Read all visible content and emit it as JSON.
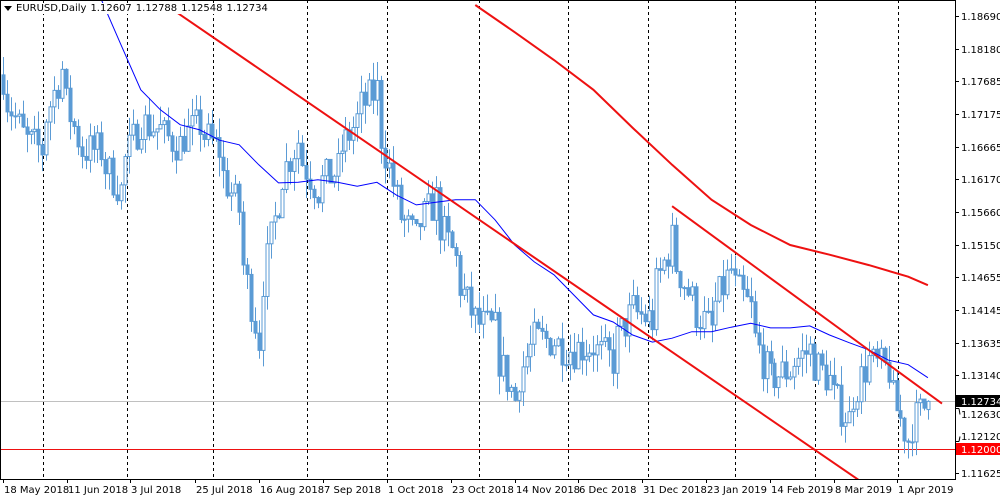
{
  "header": {
    "symbol": "EURUSD,Daily",
    "open": "1.12607",
    "high": "1.12788",
    "low": "1.12548",
    "close": "1.12734"
  },
  "colors": {
    "candle": "#5b9bd5",
    "ma_fast": "#0000ff",
    "ma_slow": "#ee1111",
    "trendline": "#ee1111",
    "level_line": "#ee1111",
    "current_price_line": "#c0c0c0",
    "current_price_label_bg": "#000000",
    "level_label_bg": "#ff0000"
  },
  "chart_data": {
    "type": "candlestick",
    "title": "EURUSD,Daily",
    "grid": "vertical dashed",
    "ylim": [
      1.11625,
      1.189
    ],
    "y_ticks": [
      "1.18690",
      "1.18180",
      "1.17685",
      "1.17175",
      "1.16665",
      "1.16170",
      "1.15660",
      "1.15150",
      "1.14655",
      "1.14145",
      "1.13635",
      "1.13140",
      "1.12630",
      "1.12120",
      "1.11625"
    ],
    "x_ticks": [
      {
        "label": "18 May 2018",
        "date": "2018-05-18"
      },
      {
        "label": "11 Jun 2018",
        "date": "2018-06-11"
      },
      {
        "label": "3 Jul 2018",
        "date": "2018-07-03"
      },
      {
        "label": "25 Jul 2018",
        "date": "2018-07-25"
      },
      {
        "label": "16 Aug 2018",
        "date": "2018-08-16"
      },
      {
        "label": "7 Sep 2018",
        "date": "2018-09-07"
      },
      {
        "label": "1 Oct 2018",
        "date": "2018-10-01"
      },
      {
        "label": "23 Oct 2018",
        "date": "2018-10-23"
      },
      {
        "label": "14 Nov 2018",
        "date": "2018-11-14"
      },
      {
        "label": "6 Dec 2018",
        "date": "2018-12-06"
      },
      {
        "label": "31 Dec 2018",
        "date": "2018-12-31"
      },
      {
        "label": "23 Jan 2019",
        "date": "2019-01-23"
      },
      {
        "label": "14 Feb 2019",
        "date": "2019-02-14"
      },
      {
        "label": "8 Mar 2019",
        "date": "2019-03-08"
      },
      {
        "label": "1 Apr 2019",
        "date": "2019-04-01"
      }
    ],
    "close_path": [
      [
        "2018-05-18",
        1.1778
      ],
      [
        "2018-05-25",
        1.1685
      ],
      [
        "2018-06-01",
        1.1662
      ],
      [
        "2018-06-08",
        1.1786
      ],
      [
        "2018-06-15",
        1.1662
      ],
      [
        "2018-06-22",
        1.1662
      ],
      [
        "2018-06-29",
        1.16
      ],
      [
        "2018-07-06",
        1.1708
      ],
      [
        "2018-07-13",
        1.1693
      ],
      [
        "2018-07-20",
        1.167
      ],
      [
        "2018-07-27",
        1.1701
      ],
      [
        "2018-08-03",
        1.1662
      ],
      [
        "2018-08-10",
        1.1569
      ],
      [
        "2018-08-17",
        1.1368
      ],
      [
        "2018-08-24",
        1.1585
      ],
      [
        "2018-08-31",
        1.1677
      ],
      [
        "2018-09-07",
        1.16
      ],
      [
        "2018-09-14",
        1.1631
      ],
      [
        "2018-09-21",
        1.1708
      ],
      [
        "2018-09-28",
        1.1755
      ],
      [
        "2018-10-05",
        1.1585
      ],
      [
        "2018-10-12",
        1.1523
      ],
      [
        "2018-10-19",
        1.1585
      ],
      [
        "2018-10-26",
        1.1492
      ],
      [
        "2018-11-02",
        1.1399
      ],
      [
        "2018-11-09",
        1.1384
      ],
      [
        "2018-11-16",
        1.1276
      ],
      [
        "2018-11-23",
        1.1368
      ],
      [
        "2018-11-30",
        1.1368
      ],
      [
        "2018-12-07",
        1.1353
      ],
      [
        "2018-12-14",
        1.136
      ],
      [
        "2018-12-21",
        1.1337
      ],
      [
        "2018-12-28",
        1.1415
      ],
      [
        "2019-01-04",
        1.1399
      ],
      [
        "2019-01-11",
        1.1523
      ],
      [
        "2019-01-18",
        1.143
      ],
      [
        "2019-01-25",
        1.1384
      ],
      [
        "2019-02-01",
        1.1476
      ],
      [
        "2019-02-08",
        1.1415
      ],
      [
        "2019-02-15",
        1.1306
      ],
      [
        "2019-02-22",
        1.1322
      ],
      [
        "2019-03-01",
        1.1353
      ],
      [
        "2019-03-08",
        1.1306
      ],
      [
        "2019-03-15",
        1.1245
      ],
      [
        "2019-03-22",
        1.1337
      ],
      [
        "2019-03-29",
        1.1322
      ],
      [
        "2019-04-05",
        1.1214
      ],
      [
        "2019-04-12",
        1.12734
      ]
    ],
    "ma_fast": [
      [
        "2018-06-22",
        1.1894
      ],
      [
        "2018-06-29",
        1.1824
      ],
      [
        "2018-07-06",
        1.1755
      ],
      [
        "2018-07-13",
        1.1724
      ],
      [
        "2018-07-20",
        1.1701
      ],
      [
        "2018-07-27",
        1.1693
      ],
      [
        "2018-08-03",
        1.1677
      ],
      [
        "2018-08-10",
        1.167
      ],
      [
        "2018-08-17",
        1.1639
      ],
      [
        "2018-08-24",
        1.1611
      ],
      [
        "2018-08-31",
        1.1612
      ],
      [
        "2018-09-07",
        1.1616
      ],
      [
        "2018-09-14",
        1.1612
      ],
      [
        "2018-09-21",
        1.1606
      ],
      [
        "2018-09-28",
        1.1612
      ],
      [
        "2018-10-05",
        1.1592
      ],
      [
        "2018-10-12",
        1.1577
      ],
      [
        "2018-10-19",
        1.1581
      ],
      [
        "2018-10-26",
        1.1585
      ],
      [
        "2018-11-02",
        1.1585
      ],
      [
        "2018-11-09",
        1.1554
      ],
      [
        "2018-11-16",
        1.1515
      ],
      [
        "2018-11-23",
        1.1489
      ],
      [
        "2018-11-30",
        1.1469
      ],
      [
        "2018-12-07",
        1.1438
      ],
      [
        "2018-12-14",
        1.1407
      ],
      [
        "2018-12-21",
        1.1396
      ],
      [
        "2018-12-28",
        1.1376
      ],
      [
        "2019-01-04",
        1.1365
      ],
      [
        "2019-01-11",
        1.1371
      ],
      [
        "2019-01-18",
        1.1381
      ],
      [
        "2019-01-25",
        1.1381
      ],
      [
        "2019-02-01",
        1.1388
      ],
      [
        "2019-02-08",
        1.1394
      ],
      [
        "2019-02-15",
        1.1387
      ],
      [
        "2019-02-22",
        1.1387
      ],
      [
        "2019-03-01",
        1.139
      ],
      [
        "2019-03-08",
        1.1376
      ],
      [
        "2019-03-15",
        1.1364
      ],
      [
        "2019-03-22",
        1.1353
      ],
      [
        "2019-03-29",
        1.1337
      ],
      [
        "2019-04-05",
        1.133
      ],
      [
        "2019-04-12",
        1.131
      ]
    ],
    "ma_slow": [
      [
        "2018-11-02",
        1.1886
      ],
      [
        "2018-11-16",
        1.1844
      ],
      [
        "2018-11-30",
        1.1801
      ],
      [
        "2018-12-14",
        1.1755
      ],
      [
        "2018-12-28",
        1.1696
      ],
      [
        "2019-01-11",
        1.1639
      ],
      [
        "2019-01-25",
        1.1585
      ],
      [
        "2019-02-08",
        1.1546
      ],
      [
        "2019-02-22",
        1.1515
      ],
      [
        "2019-03-08",
        1.15
      ],
      [
        "2019-03-22",
        1.1484
      ],
      [
        "2019-04-05",
        1.1466
      ],
      [
        "2019-04-12",
        1.1453
      ]
    ],
    "trendlines": [
      {
        "from": [
          "2018-07-17",
          1.188
        ],
        "to": [
          "2019-03-19",
          1.115
        ]
      },
      {
        "from": [
          "2019-01-11",
          1.1575
        ],
        "to": [
          "2019-04-17",
          1.127
        ]
      }
    ],
    "levels": [
      {
        "price": 1.12,
        "label": "1.12000"
      }
    ],
    "current_price": {
      "price": 1.12734,
      "label": "1.12734"
    }
  }
}
